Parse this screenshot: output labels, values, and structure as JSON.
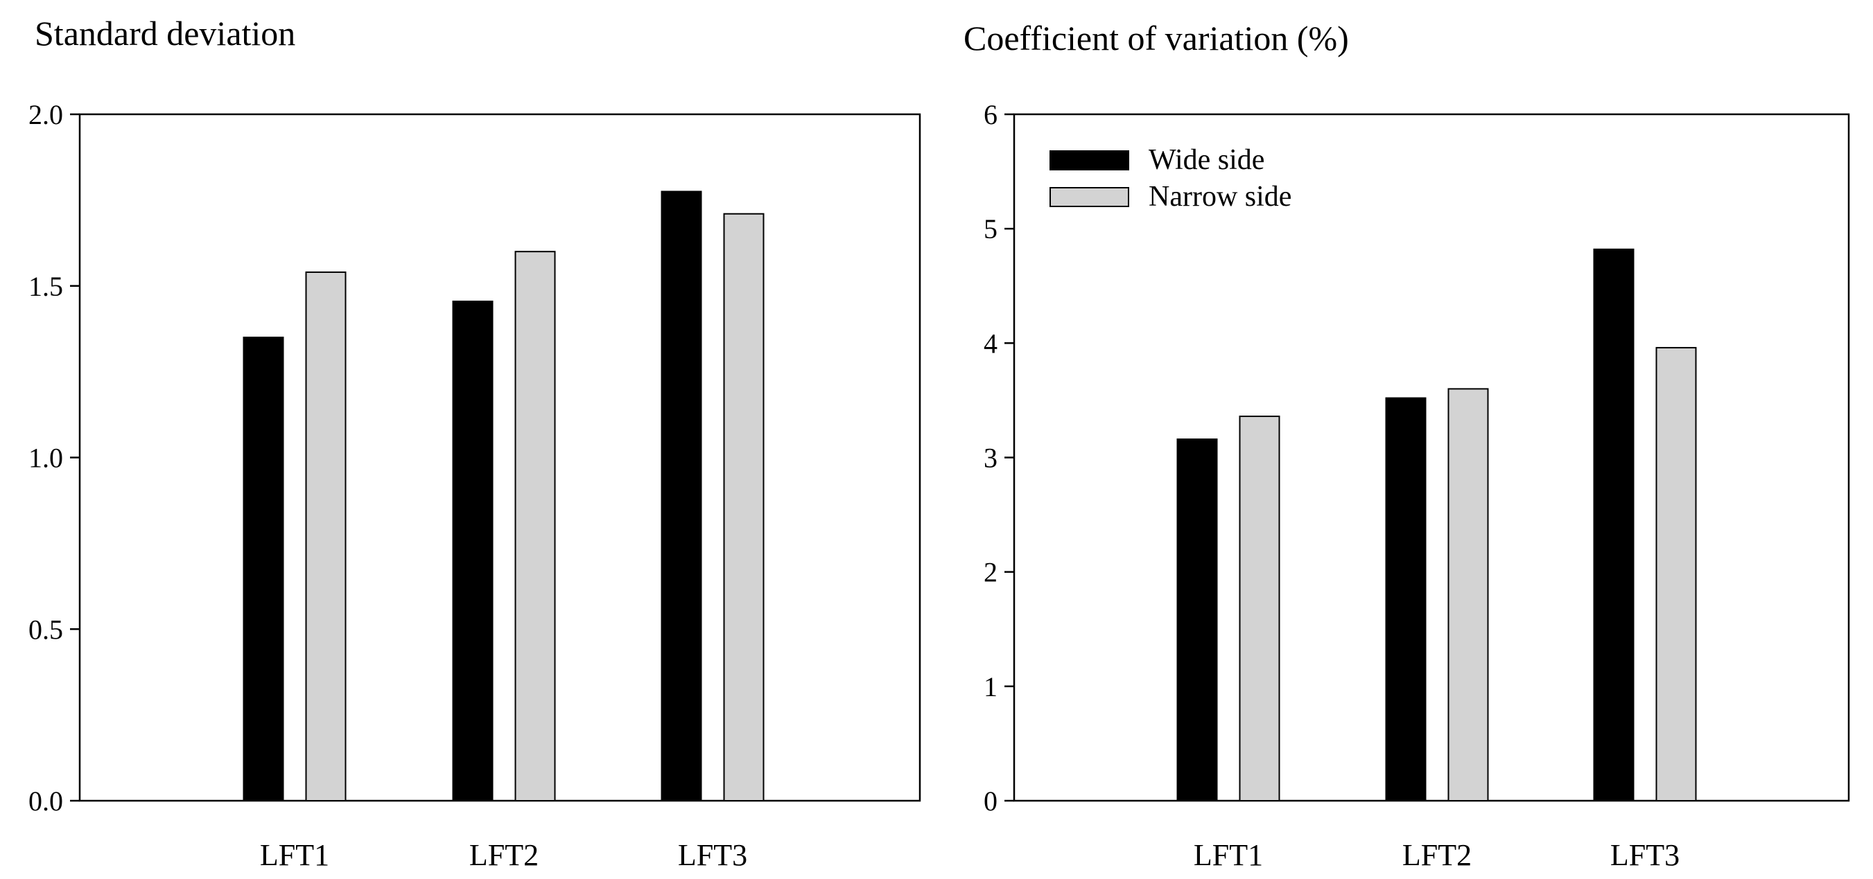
{
  "chart_data": [
    {
      "type": "bar",
      "title": "Standard deviation",
      "xlabel": "",
      "ylabel": "",
      "categories": [
        "LFT1",
        "LFT2",
        "LFT3"
      ],
      "series": [
        {
          "name": "Wide side",
          "color": "#000000",
          "values": [
            1.35,
            1.455,
            1.775
          ]
        },
        {
          "name": "Narrow side",
          "color": "#d3d3d3",
          "values": [
            1.54,
            1.6,
            1.71
          ]
        }
      ],
      "ylim": [
        0,
        2.0
      ],
      "yticks": [
        "0.0",
        "0.5",
        "1.0",
        "1.5",
        "2.0"
      ],
      "grid": false,
      "legend": false
    },
    {
      "type": "bar",
      "title": "Coefficient of variation (%)",
      "xlabel": "",
      "ylabel": "",
      "categories": [
        "LFT1",
        "LFT2",
        "LFT3"
      ],
      "series": [
        {
          "name": "Wide side",
          "color": "#000000",
          "values": [
            3.16,
            3.52,
            4.82
          ]
        },
        {
          "name": "Narrow side",
          "color": "#d3d3d3",
          "values": [
            3.36,
            3.6,
            3.96
          ]
        }
      ],
      "ylim": [
        0,
        6
      ],
      "yticks": [
        "0",
        "1",
        "2",
        "3",
        "4",
        "5",
        "6"
      ],
      "grid": false,
      "legend": "top-left"
    }
  ]
}
